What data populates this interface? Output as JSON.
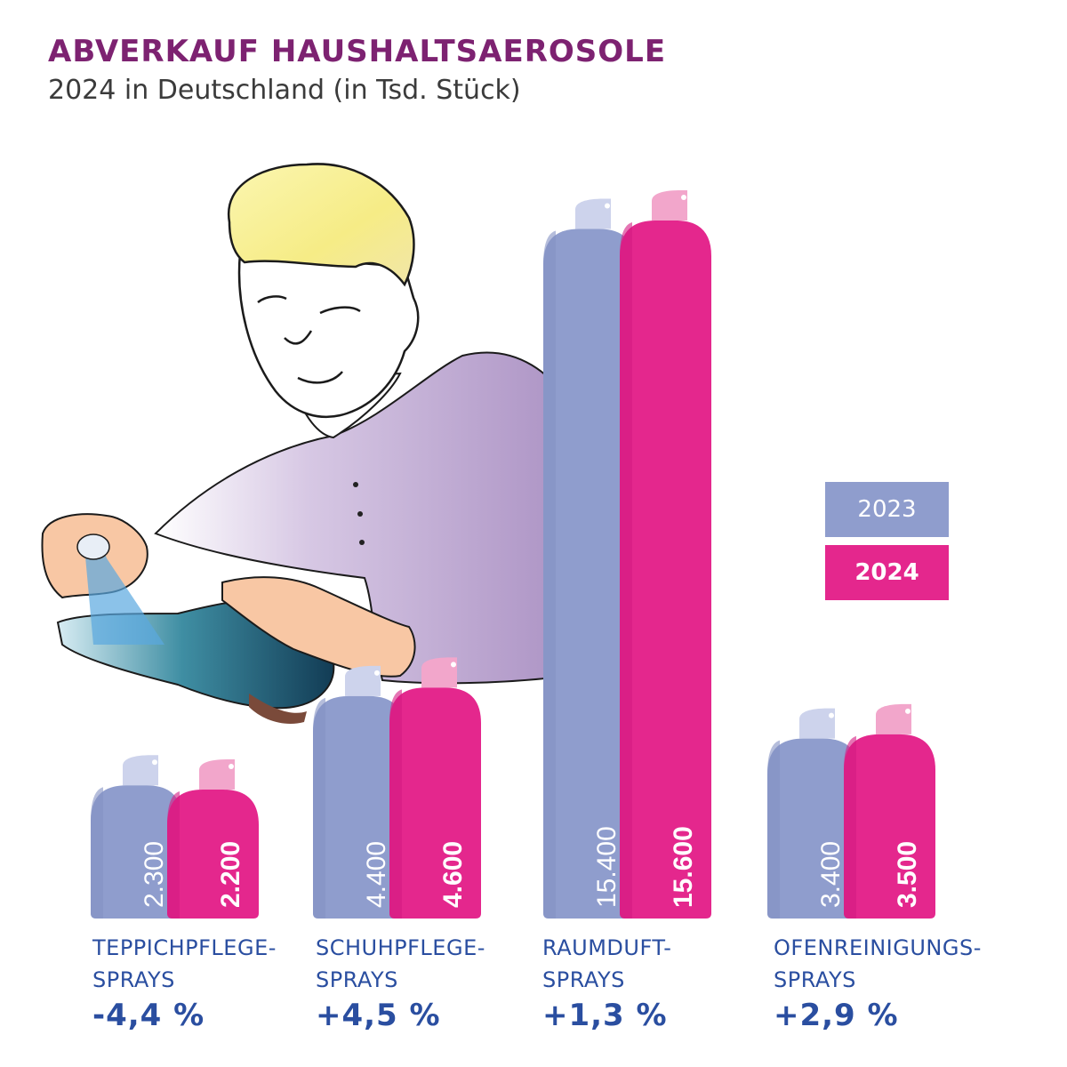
{
  "title": "ABVERKAUF HAUSHALTSAEROSOLE",
  "subtitle": "2024 in Deutschland (in Tsd. Stück)",
  "legend": [
    {
      "label": "2023",
      "color": "#8f9dcd"
    },
    {
      "label": "2024",
      "color": "#e4278d"
    }
  ],
  "chart_data": {
    "type": "bar",
    "categories": [
      {
        "line1": "TEPPICHPFLEGE-",
        "line2": "SPRAYS",
        "change": "-4,4 %"
      },
      {
        "line1": "SCHUHPFLEGE-",
        "line2": "SPRAYS",
        "change": "+4,5 %"
      },
      {
        "line1": "RAUMDUFT-",
        "line2": "SPRAYS",
        "change": "+1,3 %"
      },
      {
        "line1": "OFENREINIGUNGS-",
        "line2": "SPRAYS",
        "change": "+2,9 %"
      }
    ],
    "series": [
      {
        "name": "2023",
        "values": [
          2300,
          4400,
          15400,
          3400
        ],
        "labels": [
          "2.300",
          "4.400",
          "15.400",
          "3.400"
        ],
        "color": "#8f9dcd"
      },
      {
        "name": "2024",
        "values": [
          2200,
          4600,
          15600,
          3500
        ],
        "labels": [
          "2.200",
          "4.600",
          "15.600",
          "3.500"
        ],
        "color": "#e4278d"
      }
    ],
    "ylim": [
      0,
      15600
    ]
  }
}
